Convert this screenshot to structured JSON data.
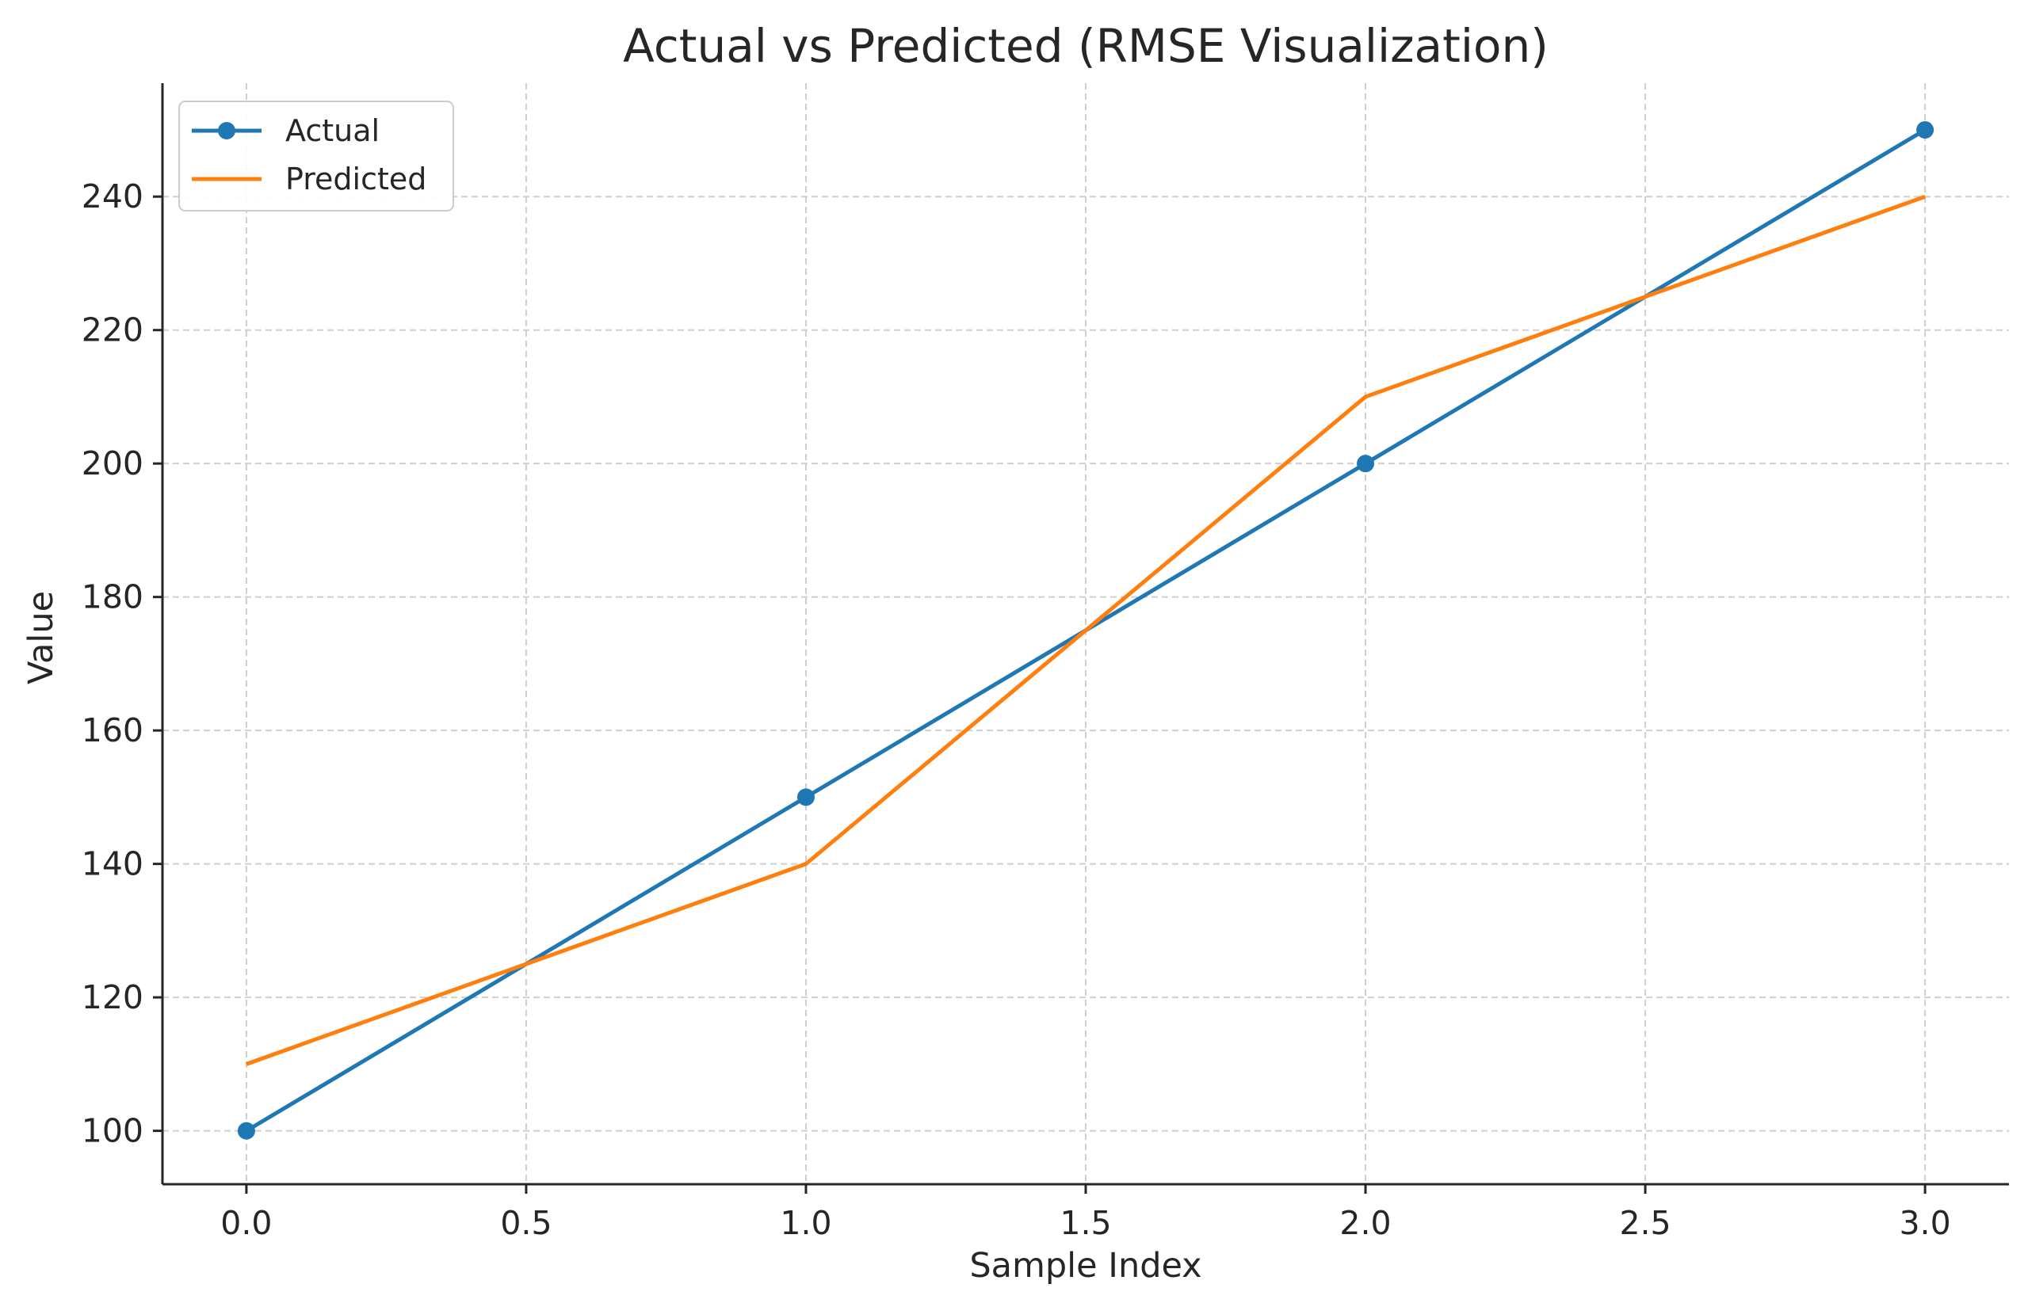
{
  "chart_data": {
    "type": "line",
    "title": "Actual vs Predicted (RMSE Visualization)",
    "xlabel": "Sample Index",
    "ylabel": "Value",
    "x": [
      0,
      1,
      2,
      3
    ],
    "xlim": [
      -0.15,
      3.15
    ],
    "ylim": [
      92,
      257
    ],
    "xticks": [
      0.0,
      0.5,
      1.0,
      1.5,
      2.0,
      2.5,
      3.0
    ],
    "xtick_labels": [
      "0.0",
      "0.5",
      "1.0",
      "1.5",
      "2.0",
      "2.5",
      "3.0"
    ],
    "yticks": [
      100,
      120,
      140,
      160,
      180,
      200,
      220,
      240
    ],
    "ytick_labels": [
      "100",
      "120",
      "140",
      "160",
      "180",
      "200",
      "220",
      "240"
    ],
    "grid": true,
    "legend_position": "top-left",
    "series": [
      {
        "name": "Actual",
        "values": [
          100,
          150,
          200,
          250
        ],
        "color": "#1f77b4",
        "marker": "circle"
      },
      {
        "name": "Predicted",
        "values": [
          110,
          140,
          210,
          240
        ],
        "color": "#ff7f0e",
        "marker": "none"
      }
    ]
  }
}
